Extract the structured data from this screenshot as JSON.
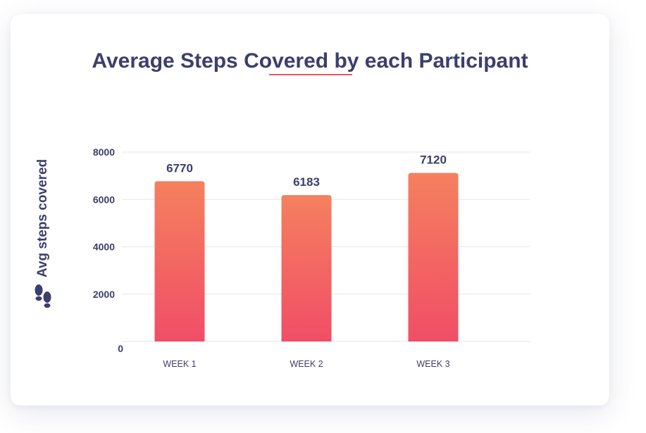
{
  "chart_data": {
    "type": "bar",
    "title": "Average Steps Covered by each Participant",
    "xlabel": "",
    "ylabel": "Avg steps covered",
    "categories": [
      "WEEK 1",
      "WEEK 2",
      "WEEK 3"
    ],
    "values": [
      6770,
      6183,
      7120
    ],
    "ylim": [
      0,
      8000
    ],
    "yticks": [
      0,
      2000,
      4000,
      6000,
      8000
    ],
    "grid": true,
    "legend": "none",
    "data_labels": true
  },
  "icons": {
    "ylabel_icon": "footprints-icon"
  },
  "colors": {
    "title": "#3b3f6b",
    "accent": "#e85a64",
    "bar_top": "#f5805e",
    "bar_bottom": "#f04e66",
    "grid": "#e4e6ec",
    "axis_text": "#3b3f6b"
  }
}
